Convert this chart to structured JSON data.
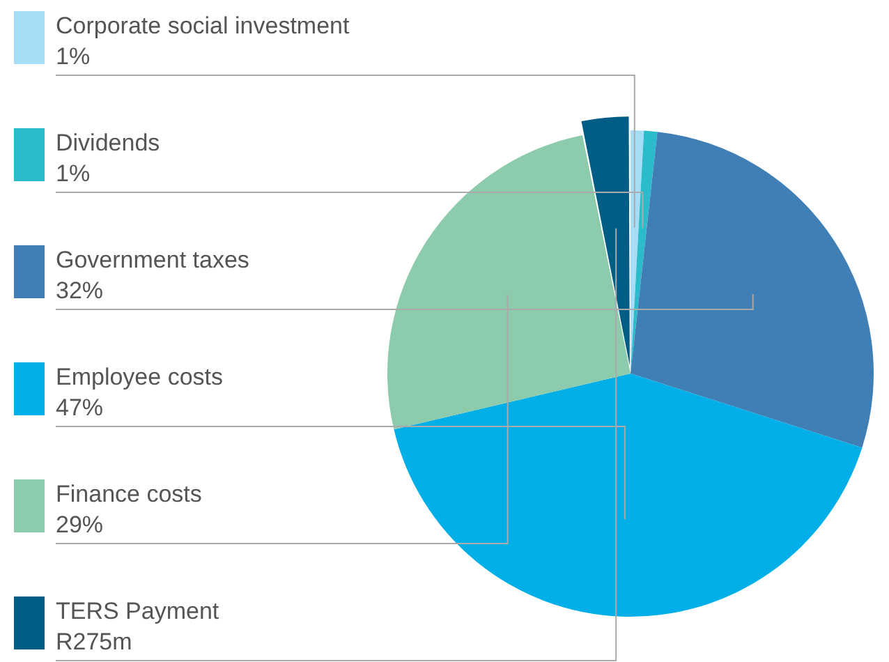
{
  "chart_data": {
    "type": "pie",
    "categories": [
      "Corporate social investment",
      "Dividends",
      "Government taxes",
      "Employee costs",
      "Finance costs",
      "TERS Payment"
    ],
    "values": [
      1,
      1,
      32,
      47,
      29,
      3.6
    ],
    "value_labels": [
      "1%",
      "1%",
      "32%",
      "47%",
      "29%",
      "R275m"
    ],
    "colors": [
      "#a6dcf5",
      "#2bbccc",
      "#3f7fb5",
      "#00aee8",
      "#8ccbac",
      "#005d86"
    ],
    "legend": "left"
  }
}
